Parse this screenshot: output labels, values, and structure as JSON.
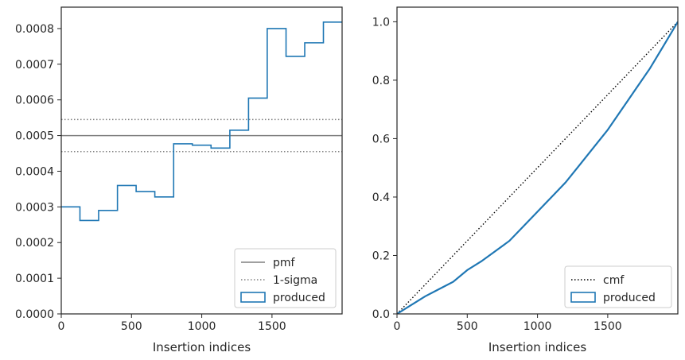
{
  "chart_data": [
    {
      "type": "line",
      "drawstyle": "steps-post",
      "xlabel": "Insertion indices",
      "ylabel": "",
      "xlim": [
        0,
        1999
      ],
      "ylim": [
        0,
        0.00086
      ],
      "xticks": [
        0,
        500,
        1000,
        1500
      ],
      "yticks": [
        0,
        0.0001,
        0.0002,
        0.0003,
        0.0004,
        0.0005,
        0.0006,
        0.0007,
        0.0008
      ],
      "tick_labels_x": [
        "0",
        "500",
        "1000",
        "1500"
      ],
      "tick_labels_y": [
        "0.0000",
        "0.0001",
        "0.0002",
        "0.0003",
        "0.0004",
        "0.0005",
        "0.0006",
        "0.0007",
        "0.0008"
      ],
      "grid": false,
      "legend_position": "lower-right",
      "series": [
        {
          "name": "pmf",
          "style": "solid",
          "color": "#808080",
          "y": 0.0005
        },
        {
          "name": "1-sigma",
          "style": "dotted",
          "color": "#808080",
          "y": [
            0.000455,
            0.000545
          ]
        },
        {
          "name": "produced",
          "style": "step",
          "color": "#1f77b4",
          "bin_edges": [
            0,
            133,
            266,
            400,
            533,
            666,
            800,
            933,
            1066,
            1200,
            1333,
            1466,
            1600,
            1733,
            1866,
            1999
          ],
          "values": [
            0.0003,
            0.000262,
            0.00029,
            0.00036,
            0.000343,
            0.000328,
            0.000477,
            0.000473,
            0.000465,
            0.000515,
            0.000605,
            0.0008,
            0.000722,
            0.00076,
            0.000818
          ]
        }
      ]
    },
    {
      "type": "line",
      "xlabel": "Insertion indices",
      "ylabel": "",
      "xlim": [
        0,
        1999
      ],
      "ylim": [
        0,
        1.05
      ],
      "xticks": [
        0,
        500,
        1000,
        1500
      ],
      "yticks": [
        0,
        0.2,
        0.4,
        0.6,
        0.8,
        1.0
      ],
      "tick_labels_x": [
        "0",
        "500",
        "1000",
        "1500"
      ],
      "tick_labels_y": [
        "0.0",
        "0.2",
        "0.4",
        "0.6",
        "0.8",
        "1.0"
      ],
      "grid": false,
      "legend_position": "lower-right",
      "series": [
        {
          "name": "cmf",
          "style": "dotted",
          "color": "#000000",
          "x": [
            0,
            1999
          ],
          "y": [
            0,
            1
          ]
        },
        {
          "name": "produced",
          "style": "solid",
          "color": "#1f77b4",
          "x": [
            0,
            100,
            200,
            300,
            400,
            500,
            600,
            700,
            800,
            900,
            1000,
            1100,
            1200,
            1300,
            1400,
            1500,
            1600,
            1700,
            1800,
            1900,
            1999
          ],
          "y": [
            0,
            0.03,
            0.06,
            0.085,
            0.11,
            0.15,
            0.18,
            0.215,
            0.25,
            0.3,
            0.35,
            0.4,
            0.45,
            0.51,
            0.57,
            0.63,
            0.7,
            0.77,
            0.84,
            0.92,
            1.0
          ]
        }
      ]
    }
  ]
}
